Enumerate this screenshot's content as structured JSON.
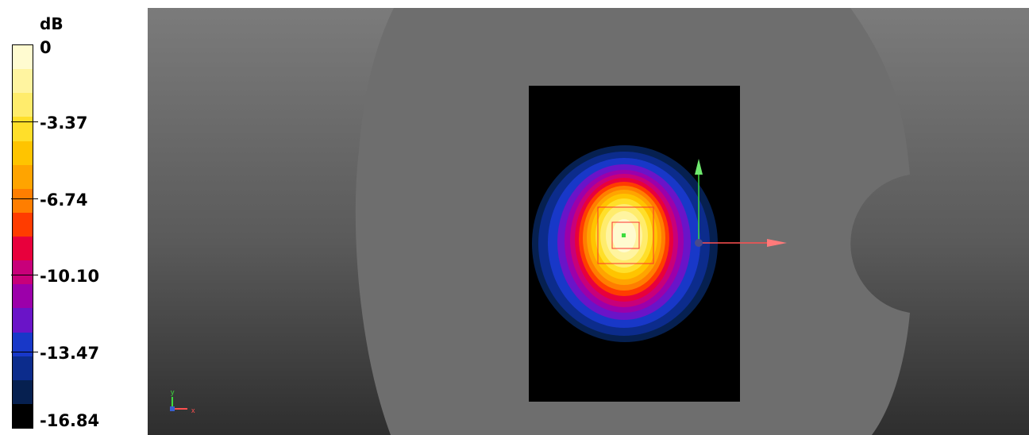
{
  "legend": {
    "unit": "dB",
    "ticks": [
      "0",
      "-3.37",
      "-6.74",
      "-10.10",
      "-13.47",
      "-16.84"
    ],
    "bands": [
      "#fffbd0",
      "#fff4a0",
      "#ffec6c",
      "#ffdf2a",
      "#ffc400",
      "#ffa400",
      "#ff7e00",
      "#ff3c00",
      "#e8003c",
      "#c8007a",
      "#9c00aa",
      "#6a14c8",
      "#1838c8",
      "#0c2c8c",
      "#062050",
      "#000000"
    ]
  },
  "viewport": {
    "background_top": "#7b7b7b",
    "phantom_color": "#6e6e6e",
    "scan_area_color": "#000000",
    "axes": {
      "x": "x",
      "y": "y"
    },
    "colors": {
      "x_axis": "#ff5050",
      "y_axis": "#3ddc3d",
      "box": "#ff3030"
    }
  }
}
